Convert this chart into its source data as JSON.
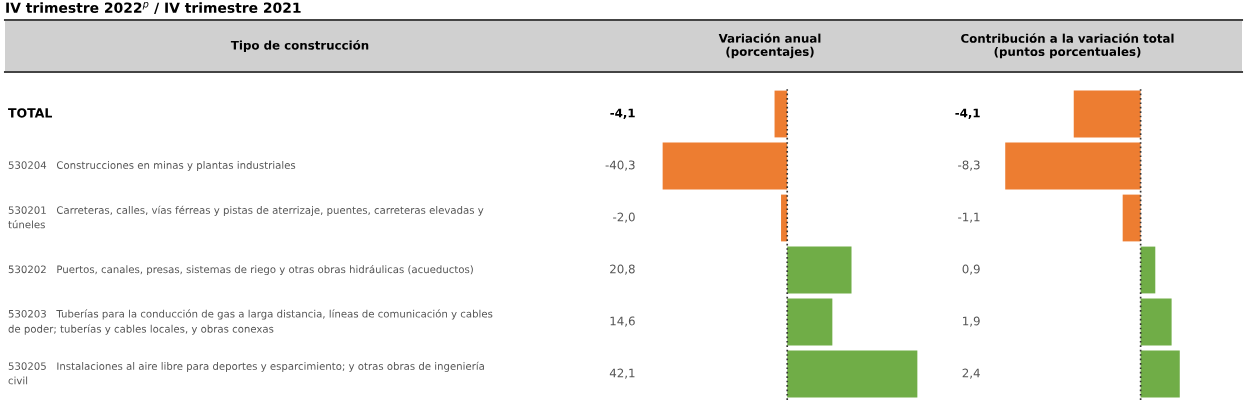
{
  "chart_data": [
    {
      "type": "bar",
      "orientation": "horizontal",
      "title": "IV trimestre 2022$^{p}$ / IV trimestre 2021",
      "ylabel": "Tipo de construcción",
      "subtitle": "Variación anual\n(porcentajes)",
      "categories": [
        "TOTAL",
        "530204   Construcciones en minas y plantas industriales",
        "530201   Carreteras, calles, vías férreas y pistas de aterrizaje, puentes, carreteras elevadas y\ntúneles",
        "530202   Puertos, canales, presas, sistemas de riego y otras obras hidráulicas (acueductos)",
        "530203   Tuberías para la conducción de gas a larga distancia, líneas de comunicación y cables\nde poder; tuberías y cables locales, y obras conexas",
        "530205   Instalaciones al aire libre para deportes y esparcimiento; y otras obras de ingeniería\ncivil"
      ],
      "values": [
        -4.1,
        -40.3,
        -2.0,
        20.8,
        14.6,
        42.1
      ],
      "value_labels": [
        "-4,1",
        "-40,3",
        "-2,0",
        "20,8",
        "14,6",
        "42,1"
      ],
      "colors": [
        "#ed7d31",
        "#ed7d31",
        "#ed7d31",
        "#70ad47",
        "#70ad47",
        "#70ad47"
      ],
      "ref_lines": [
        {
          "axis": "x",
          "value": 0,
          "line_style": "dotted",
          "color": "#333333"
        }
      ]
    },
    {
      "type": "bar",
      "orientation": "horizontal",
      "subtitle": "Contribución a la variación total\n(puntos porcentuales)",
      "categories": [
        null,
        null,
        null,
        null,
        null,
        null
      ],
      "values": [
        -4.1,
        -8.3,
        -1.1,
        0.9,
        1.9,
        2.4
      ],
      "value_labels": [
        "-4,1",
        "-8,3",
        "-1,1",
        "0,9",
        "1,9",
        "2,4"
      ],
      "colors": [
        "#ed7d31",
        "#ed7d31",
        "#ed7d31",
        "#70ad47",
        "#70ad47",
        "#70ad47"
      ],
      "ref_lines": [
        {
          "axis": "x",
          "value": 0,
          "line_style": "dotted",
          "color": "#333333"
        }
      ]
    }
  ]
}
